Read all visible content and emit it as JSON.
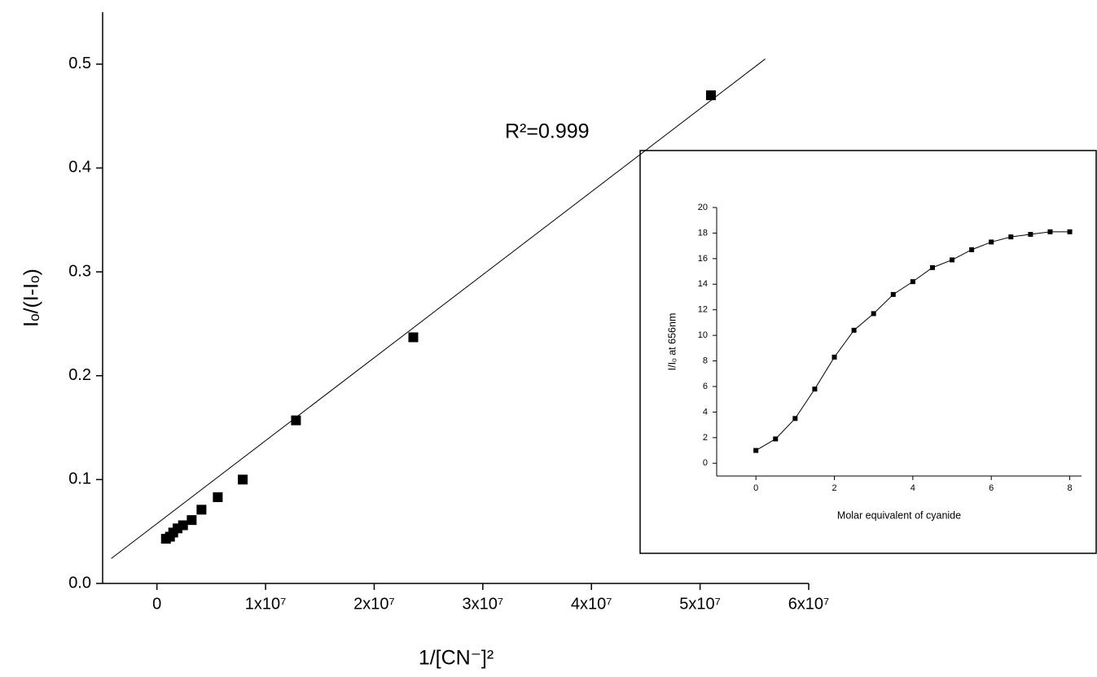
{
  "chart_data": [
    {
      "type": "scatter",
      "x_label": "1/[CN⁻]²",
      "y_label": "Iₒ/(I-Iₒ)",
      "annotation": "R²=0.999",
      "xlim": [
        -5000000,
        60000000
      ],
      "ylim": [
        0,
        0.55
      ],
      "xticks": [
        0,
        {
          "value": 10000000,
          "label": "1x10⁷"
        },
        {
          "value": 20000000,
          "label": "2x10⁷"
        },
        {
          "value": 30000000,
          "label": "3x10⁷"
        },
        {
          "value": 40000000,
          "label": "4x10⁷"
        },
        {
          "value": 50000000,
          "label": "5x10⁷"
        },
        {
          "value": 60000000,
          "label": "6x10⁷"
        }
      ],
      "yticks": [
        {
          "value": 0,
          "label": "0.0"
        },
        0.1,
        0.2,
        0.3,
        0.4,
        0.5
      ],
      "series": [
        {
          "mode": "markers",
          "color": "#000000",
          "x": [
            830000,
            1200000,
            1500000,
            1900000,
            2400000,
            3200000,
            4100000,
            5600000,
            7900000,
            12800000,
            23600000,
            51000000
          ],
          "values": [
            0.043,
            0.045,
            0.049,
            0.053,
            0.056,
            0.061,
            0.071,
            0.083,
            0.1,
            0.157,
            0.237,
            0.47
          ]
        },
        {
          "mode": "lines",
          "color": "#000000",
          "x": [
            -4200000,
            56000000
          ],
          "values": [
            0.024,
            0.505
          ]
        }
      ]
    },
    {
      "type": "line",
      "x_label": "Molar equivalent of cyanide",
      "y_label": "I/Iₒ at 656nm",
      "xlim": [
        -1,
        8.3
      ],
      "ylim": [
        -1,
        20
      ],
      "xticks": [
        0,
        2,
        4,
        6,
        8
      ],
      "yticks": [
        0,
        2,
        4,
        6,
        8,
        10,
        12,
        14,
        16,
        18,
        20
      ],
      "series": [
        {
          "mode": "lines+markers",
          "color": "#000000",
          "x": [
            0,
            0.5,
            1,
            1.5,
            2,
            2.5,
            3,
            3.5,
            4,
            4.5,
            5,
            5.5,
            6,
            6.5,
            7,
            7.5,
            8
          ],
          "values": [
            1.0,
            1.9,
            3.5,
            5.8,
            8.3,
            10.4,
            11.7,
            13.2,
            14.2,
            15.3,
            15.9,
            16.7,
            17.3,
            17.7,
            17.9,
            18.1,
            18.1
          ]
        }
      ]
    }
  ]
}
